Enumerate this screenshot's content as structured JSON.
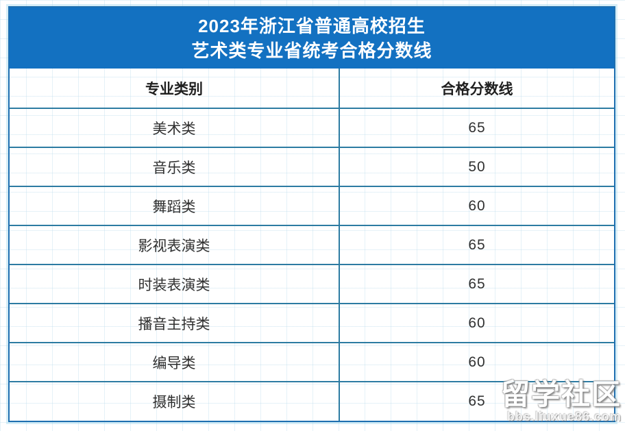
{
  "title": {
    "line1": "2023年浙江省普通高校招生",
    "line2": "艺术类专业省统考合格分数线"
  },
  "table": {
    "headers": [
      "专业类别",
      "合格分数线"
    ],
    "rows": [
      {
        "category": "美术类",
        "score": "65"
      },
      {
        "category": "音乐类",
        "score": "50"
      },
      {
        "category": "舞蹈类",
        "score": "60"
      },
      {
        "category": "影视表演类",
        "score": "65"
      },
      {
        "category": "时装表演类",
        "score": "65"
      },
      {
        "category": "播音主持类",
        "score": "60"
      },
      {
        "category": "编导类",
        "score": "60"
      },
      {
        "category": "摄制类",
        "score": "65"
      }
    ]
  },
  "watermark": {
    "text": "留学社区",
    "url": "bbs.liuxue86.com"
  },
  "colors": {
    "banner_blue": "#1371c1",
    "outer_border": "#1e6fb0",
    "inner_border": "#2c7ba2",
    "halo": "#a0d2eb"
  }
}
